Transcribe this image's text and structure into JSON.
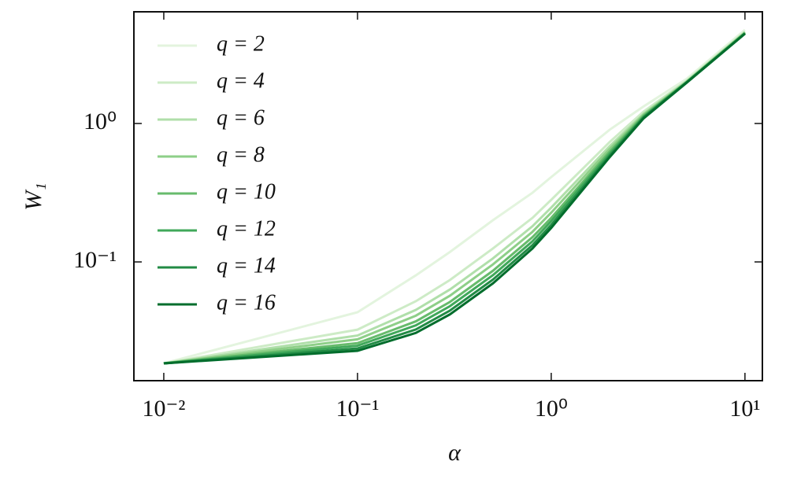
{
  "chart_data": {
    "type": "line",
    "x_label": "α",
    "y_label": "W₁",
    "xscale": "log",
    "yscale": "log",
    "legend": "upper left",
    "xlim": [
      0.00701,
      12.3
    ],
    "ylim": [
      0.01387,
      6.41
    ],
    "xticks": [
      {
        "value": 0.01,
        "label": "10⁻²"
      },
      {
        "value": 0.1,
        "label": "10⁻¹"
      },
      {
        "value": 1,
        "label": "10⁰"
      },
      {
        "value": 10,
        "label": "10¹"
      }
    ],
    "yticks": [
      {
        "value": 0.1,
        "label": "10⁻¹"
      },
      {
        "value": 1,
        "label": "10⁰"
      }
    ],
    "x": [
      0.01,
      0.1,
      0.2,
      0.3,
      0.5,
      0.8,
      1,
      2,
      3,
      5,
      10
    ],
    "series": [
      {
        "name": "q = 2",
        "color": "#e3f4de",
        "values": [
          0.0185,
          0.0433,
          0.08,
          0.118,
          0.2,
          0.316,
          0.41,
          0.9,
          1.33,
          2.1,
          4.75
        ]
      },
      {
        "name": "q = 4",
        "color": "#cdebc6",
        "values": [
          0.0185,
          0.0324,
          0.052,
          0.074,
          0.125,
          0.208,
          0.281,
          0.733,
          1.22,
          2.04,
          4.61
        ]
      },
      {
        "name": "q = 6",
        "color": "#b0dfaa",
        "values": [
          0.0185,
          0.0294,
          0.045,
          0.0632,
          0.106,
          0.181,
          0.247,
          0.684,
          1.18,
          2.02,
          4.57
        ]
      },
      {
        "name": "q = 8",
        "color": "#8ecf88",
        "values": [
          0.0185,
          0.0276,
          0.0409,
          0.057,
          0.0959,
          0.165,
          0.227,
          0.653,
          1.16,
          2.0,
          4.54
        ]
      },
      {
        "name": "q = 10",
        "color": "#67bb6c",
        "values": [
          0.0185,
          0.0259,
          0.0372,
          0.0514,
          0.0863,
          0.151,
          0.208,
          0.625,
          1.14,
          1.99,
          4.51
        ]
      },
      {
        "name": "q = 12",
        "color": "#40a85a",
        "values": [
          0.0185,
          0.0248,
          0.0348,
          0.0479,
          0.0802,
          0.141,
          0.197,
          0.605,
          1.12,
          1.99,
          4.49
        ]
      },
      {
        "name": "q = 14",
        "color": "#228b45",
        "values": [
          0.0185,
          0.0237,
          0.0325,
          0.0445,
          0.0745,
          0.132,
          0.185,
          0.586,
          1.11,
          1.98,
          4.47
        ]
      },
      {
        "name": "q = 16",
        "color": "#006d2c",
        "values": [
          0.0185,
          0.0228,
          0.0307,
          0.0418,
          0.07,
          0.125,
          0.176,
          0.57,
          1.09,
          1.97,
          4.45
        ]
      }
    ]
  }
}
